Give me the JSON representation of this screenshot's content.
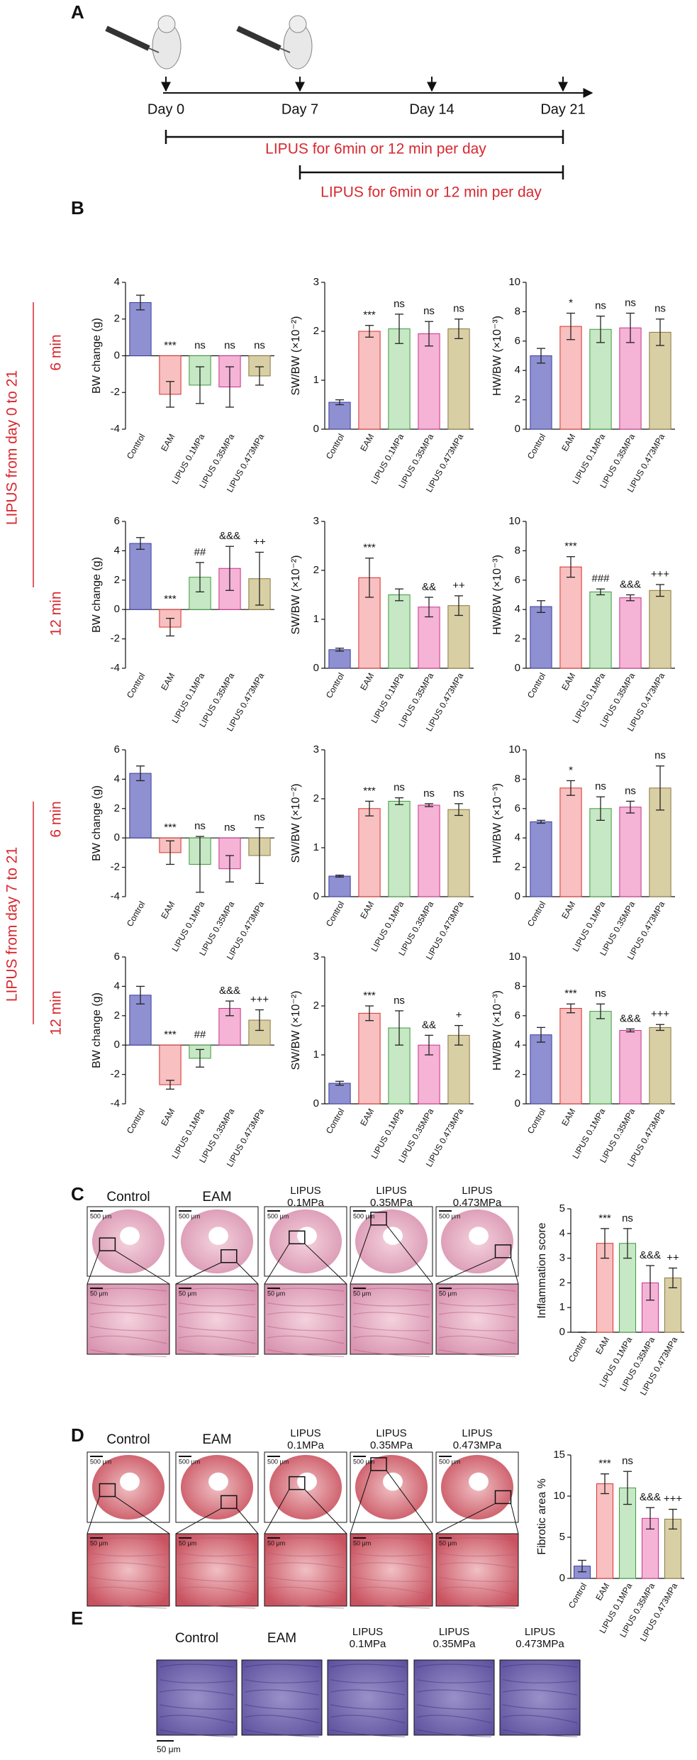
{
  "panels": [
    "A",
    "B",
    "C",
    "D",
    "E"
  ],
  "timeline": {
    "days": [
      "Day 0",
      "Day 7",
      "Day 14",
      "Day 21"
    ],
    "bars": [
      "LIPUS for 6min or 12 min per day",
      "LIPUS for 6min or 12 min per day"
    ]
  },
  "panel_b": {
    "groups": [
      {
        "label": "LIPUS from day 0 to 21",
        "rows": [
          "6 min",
          "12 min"
        ]
      },
      {
        "label": "LIPUS from day 7 to 21",
        "rows": [
          "6 min",
          "12 min"
        ]
      }
    ]
  },
  "histology": {
    "columns": [
      [
        "Control"
      ],
      [
        "EAM"
      ],
      [
        "LIPUS",
        "0.1MPa"
      ],
      [
        "LIPUS",
        "0.35MPa"
      ],
      [
        "LIPUS",
        "0.473MPa"
      ]
    ],
    "scale_large": "500 μm",
    "scale_small": "50 μm"
  },
  "chart_data": [
    {
      "type": "bar",
      "y_label": "BW change (g)",
      "categories": [
        "Control",
        "EAM",
        "LIPUS 0.1MPa",
        "LIPUS 0.35MPa",
        "LIPUS 0.473MPa"
      ],
      "colors": [
        "#8f90d1",
        "#f8c0c0",
        "#c6e8c4",
        "#f5b3d6",
        "#d9cfa5"
      ],
      "edge_colors": [
        "#3b3f9e",
        "#d9302c",
        "#3f9a3f",
        "#c7348a",
        "#8a7740"
      ],
      "values": [
        2.9,
        -2.1,
        -1.6,
        -1.7,
        -1.1
      ],
      "errors": [
        0.4,
        0.7,
        1.0,
        1.1,
        0.5
      ],
      "annotations": [
        null,
        "***",
        "ns",
        "ns",
        "ns"
      ],
      "ylim": [
        -4,
        4
      ],
      "yticks": [
        -4,
        -2,
        0,
        2,
        4
      ]
    },
    {
      "type": "bar",
      "y_label": "SW/BW (×10⁻²)",
      "categories": [
        "Control",
        "EAM",
        "LIPUS 0.1MPa",
        "LIPUS 0.35MPa",
        "LIPUS 0.473MPa"
      ],
      "colors": [
        "#8f90d1",
        "#f8c0c0",
        "#c6e8c4",
        "#f5b3d6",
        "#d9cfa5"
      ],
      "edge_colors": [
        "#3b3f9e",
        "#d9302c",
        "#3f9a3f",
        "#c7348a",
        "#8a7740"
      ],
      "values": [
        0.55,
        2.0,
        2.05,
        1.95,
        2.05
      ],
      "errors": [
        0.05,
        0.12,
        0.3,
        0.25,
        0.2
      ],
      "annotations": [
        null,
        "***",
        "ns",
        "ns",
        "ns"
      ],
      "ylim": [
        0,
        3
      ],
      "yticks": [
        0,
        1,
        2,
        3
      ]
    },
    {
      "type": "bar",
      "y_label": "HW/BW (×10⁻³)",
      "categories": [
        "Control",
        "EAM",
        "LIPUS 0.1MPa",
        "LIPUS 0.35MPa",
        "LIPUS 0.473MPa"
      ],
      "colors": [
        "#8f90d1",
        "#f8c0c0",
        "#c6e8c4",
        "#f5b3d6",
        "#d9cfa5"
      ],
      "edge_colors": [
        "#3b3f9e",
        "#d9302c",
        "#3f9a3f",
        "#c7348a",
        "#8a7740"
      ],
      "values": [
        5.0,
        7.0,
        6.8,
        6.9,
        6.6
      ],
      "errors": [
        0.5,
        0.9,
        0.9,
        1.0,
        0.9
      ],
      "annotations": [
        null,
        "*",
        "ns",
        "ns",
        "ns"
      ],
      "ylim": [
        0,
        10
      ],
      "yticks": [
        0,
        2,
        4,
        6,
        8,
        10
      ]
    },
    {
      "type": "bar",
      "y_label": "BW change (g)",
      "categories": [
        "Control",
        "EAM",
        "LIPUS 0.1MPa",
        "LIPUS 0.35MPa",
        "LIPUS 0.473MPa"
      ],
      "colors": [
        "#8f90d1",
        "#f8c0c0",
        "#c6e8c4",
        "#f5b3d6",
        "#d9cfa5"
      ],
      "edge_colors": [
        "#3b3f9e",
        "#d9302c",
        "#3f9a3f",
        "#c7348a",
        "#8a7740"
      ],
      "values": [
        4.5,
        -1.2,
        2.2,
        2.8,
        2.1
      ],
      "errors": [
        0.4,
        0.6,
        1.0,
        1.5,
        1.8
      ],
      "annotations": [
        null,
        "***",
        "##",
        "&&&",
        "++"
      ],
      "ylim": [
        -4,
        6
      ],
      "yticks": [
        -4,
        -2,
        0,
        2,
        4,
        6
      ]
    },
    {
      "type": "bar",
      "y_label": "SW/BW (×10⁻²)",
      "categories": [
        "Control",
        "EAM",
        "LIPUS 0.1MPa",
        "LIPUS 0.35MPa",
        "LIPUS 0.473MPa"
      ],
      "colors": [
        "#8f90d1",
        "#f8c0c0",
        "#c6e8c4",
        "#f5b3d6",
        "#d9cfa5"
      ],
      "edge_colors": [
        "#3b3f9e",
        "#d9302c",
        "#3f9a3f",
        "#c7348a",
        "#8a7740"
      ],
      "values": [
        0.38,
        1.85,
        1.5,
        1.25,
        1.28
      ],
      "errors": [
        0.03,
        0.4,
        0.12,
        0.2,
        0.2
      ],
      "annotations": [
        null,
        "***",
        null,
        "&&",
        "++"
      ],
      "ylim": [
        0,
        3
      ],
      "yticks": [
        0,
        1,
        2,
        3
      ]
    },
    {
      "type": "bar",
      "y_label": "HW/BW (×10⁻³)",
      "categories": [
        "Control",
        "EAM",
        "LIPUS 0.1MPa",
        "LIPUS 0.35MPa",
        "LIPUS 0.473MPa"
      ],
      "colors": [
        "#8f90d1",
        "#f8c0c0",
        "#c6e8c4",
        "#f5b3d6",
        "#d9cfa5"
      ],
      "edge_colors": [
        "#3b3f9e",
        "#d9302c",
        "#3f9a3f",
        "#c7348a",
        "#8a7740"
      ],
      "values": [
        4.2,
        6.9,
        5.2,
        4.8,
        5.3
      ],
      "errors": [
        0.4,
        0.7,
        0.2,
        0.2,
        0.4
      ],
      "annotations": [
        null,
        "***",
        "###",
        "&&&",
        "+++"
      ],
      "ylim": [
        0,
        10
      ],
      "yticks": [
        0,
        2,
        4,
        6,
        8,
        10
      ]
    },
    {
      "type": "bar",
      "y_label": "BW change (g)",
      "categories": [
        "Control",
        "EAM",
        "LIPUS 0.1MPa",
        "LIPUS 0.35MPa",
        "LIPUS 0.473MPa"
      ],
      "colors": [
        "#8f90d1",
        "#f8c0c0",
        "#c6e8c4",
        "#f5b3d6",
        "#d9cfa5"
      ],
      "edge_colors": [
        "#3b3f9e",
        "#d9302c",
        "#3f9a3f",
        "#c7348a",
        "#8a7740"
      ],
      "values": [
        4.4,
        -1.0,
        -1.8,
        -2.1,
        -1.2
      ],
      "errors": [
        0.5,
        0.8,
        1.9,
        0.9,
        1.9
      ],
      "annotations": [
        null,
        "***",
        "ns",
        "ns",
        "ns"
      ],
      "ylim": [
        -4,
        6
      ],
      "yticks": [
        -4,
        -2,
        0,
        2,
        4,
        6
      ]
    },
    {
      "type": "bar",
      "y_label": "SW/BW (×10⁻²)",
      "categories": [
        "Control",
        "EAM",
        "LIPUS 0.1MPa",
        "LIPUS 0.35MPa",
        "LIPUS 0.473MPa"
      ],
      "colors": [
        "#8f90d1",
        "#f8c0c0",
        "#c6e8c4",
        "#f5b3d6",
        "#d9cfa5"
      ],
      "edge_colors": [
        "#3b3f9e",
        "#d9302c",
        "#3f9a3f",
        "#c7348a",
        "#8a7740"
      ],
      "values": [
        0.42,
        1.8,
        1.95,
        1.87,
        1.78
      ],
      "errors": [
        0.02,
        0.15,
        0.07,
        0.03,
        0.12
      ],
      "annotations": [
        null,
        "***",
        "ns",
        "ns",
        "ns"
      ],
      "ylim": [
        0,
        3
      ],
      "yticks": [
        0,
        1,
        2,
        3
      ]
    },
    {
      "type": "bar",
      "y_label": "HW/BW (×10⁻³)",
      "categories": [
        "Control",
        "EAM",
        "LIPUS 0.1MPa",
        "LIPUS 0.35MPa",
        "LIPUS 0.473MPa"
      ],
      "colors": [
        "#8f90d1",
        "#f8c0c0",
        "#c6e8c4",
        "#f5b3d6",
        "#d9cfa5"
      ],
      "edge_colors": [
        "#3b3f9e",
        "#d9302c",
        "#3f9a3f",
        "#c7348a",
        "#8a7740"
      ],
      "values": [
        5.1,
        7.4,
        6.0,
        6.1,
        7.4
      ],
      "errors": [
        0.1,
        0.5,
        0.8,
        0.4,
        1.5
      ],
      "annotations": [
        null,
        "*",
        "ns",
        "ns",
        "ns"
      ],
      "ylim": [
        0,
        10
      ],
      "yticks": [
        0,
        2,
        4,
        6,
        8,
        10
      ]
    },
    {
      "type": "bar",
      "y_label": "BW change (g)",
      "categories": [
        "Control",
        "EAM",
        "LIPUS 0.1MPa",
        "LIPUS 0.35MPa",
        "LIPUS 0.473MPa"
      ],
      "colors": [
        "#8f90d1",
        "#f8c0c0",
        "#c6e8c4",
        "#f5b3d6",
        "#d9cfa5"
      ],
      "edge_colors": [
        "#3b3f9e",
        "#d9302c",
        "#3f9a3f",
        "#c7348a",
        "#8a7740"
      ],
      "values": [
        3.4,
        -2.7,
        -0.9,
        2.5,
        1.7
      ],
      "errors": [
        0.6,
        0.3,
        0.6,
        0.5,
        0.7
      ],
      "annotations": [
        null,
        "***",
        "##",
        "&&&",
        "+++"
      ],
      "ylim": [
        -4,
        6
      ],
      "yticks": [
        -4,
        -2,
        0,
        2,
        4,
        6
      ]
    },
    {
      "type": "bar",
      "y_label": "SW/BW (×10⁻²)",
      "categories": [
        "Control",
        "EAM",
        "LIPUS 0.1MPa",
        "LIPUS 0.35MPa",
        "LIPUS 0.473MPa"
      ],
      "colors": [
        "#8f90d1",
        "#f8c0c0",
        "#c6e8c4",
        "#f5b3d6",
        "#d9cfa5"
      ],
      "edge_colors": [
        "#3b3f9e",
        "#d9302c",
        "#3f9a3f",
        "#c7348a",
        "#8a7740"
      ],
      "values": [
        0.42,
        1.85,
        1.55,
        1.2,
        1.4
      ],
      "errors": [
        0.04,
        0.15,
        0.35,
        0.2,
        0.2
      ],
      "annotations": [
        null,
        "***",
        "ns",
        "&&",
        "+"
      ],
      "ylim": [
        0,
        3
      ],
      "yticks": [
        0,
        1,
        2,
        3
      ]
    },
    {
      "type": "bar",
      "y_label": "HW/BW (×10⁻³)",
      "categories": [
        "Control",
        "EAM",
        "LIPUS 0.1MPa",
        "LIPUS 0.35MPa",
        "LIPUS 0.473MPa"
      ],
      "colors": [
        "#8f90d1",
        "#f8c0c0",
        "#c6e8c4",
        "#f5b3d6",
        "#d9cfa5"
      ],
      "edge_colors": [
        "#3b3f9e",
        "#d9302c",
        "#3f9a3f",
        "#c7348a",
        "#8a7740"
      ],
      "values": [
        4.7,
        6.5,
        6.3,
        5.0,
        5.2
      ],
      "errors": [
        0.5,
        0.3,
        0.5,
        0.1,
        0.2
      ],
      "annotations": [
        null,
        "***",
        "ns",
        "&&&",
        "+++"
      ],
      "ylim": [
        0,
        10
      ],
      "yticks": [
        0,
        2,
        4,
        6,
        8,
        10
      ]
    },
    {
      "type": "bar",
      "y_label": "Inflammation score",
      "categories": [
        "Control",
        "EAM",
        "LIPUS 0.1MPa",
        "LIPUS 0.35MPa",
        "LIPUS 0.473MPa"
      ],
      "colors": [
        "#8f90d1",
        "#f8c0c0",
        "#c6e8c4",
        "#f5b3d6",
        "#d9cfa5"
      ],
      "edge_colors": [
        "#3b3f9e",
        "#d9302c",
        "#3f9a3f",
        "#c7348a",
        "#8a7740"
      ],
      "values": [
        0,
        3.6,
        3.6,
        2.0,
        2.2
      ],
      "errors": [
        0,
        0.6,
        0.6,
        0.7,
        0.4
      ],
      "annotations": [
        null,
        "***",
        "ns",
        "&&&",
        "++"
      ],
      "ylim": [
        0,
        5
      ],
      "yticks": [
        0,
        1,
        2,
        3,
        4,
        5
      ]
    },
    {
      "type": "bar",
      "y_label": "Fibrotic area %",
      "categories": [
        "Control",
        "EAM",
        "LIPUS 0.1MPa",
        "LIPUS 0.35MPa",
        "LIPUS 0.473MPa"
      ],
      "colors": [
        "#8f90d1",
        "#f8c0c0",
        "#c6e8c4",
        "#f5b3d6",
        "#d9cfa5"
      ],
      "edge_colors": [
        "#3b3f9e",
        "#d9302c",
        "#3f9a3f",
        "#c7348a",
        "#8a7740"
      ],
      "values": [
        1.5,
        11.5,
        11,
        7.3,
        7.2
      ],
      "errors": [
        0.7,
        1.2,
        2,
        1.3,
        1.2
      ],
      "annotations": [
        null,
        "***",
        "ns",
        "&&&",
        "+++"
      ],
      "ylim": [
        0,
        15
      ],
      "yticks": [
        0,
        5,
        10,
        15
      ]
    }
  ]
}
